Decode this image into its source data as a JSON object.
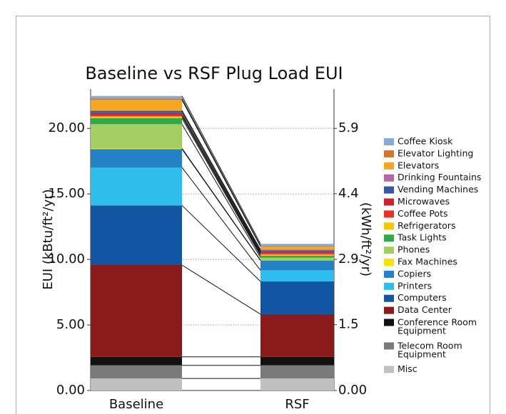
{
  "chart_data": {
    "type": "stacked_bar",
    "title": "Baseline vs RSF Plug Load EUI",
    "ylabel": "EUI (kBtu/ft²/yr)",
    "y2label": "(kWh/ft²/yr)",
    "categories": [
      "Baseline",
      "RSF"
    ],
    "ylim": [
      0,
      23
    ],
    "yticks": [
      {
        "value": 0,
        "label": "0.00"
      },
      {
        "value": 5,
        "label": "5.00"
      },
      {
        "value": 10,
        "label": "10.00"
      },
      {
        "value": 15,
        "label": "15.00"
      },
      {
        "value": 20,
        "label": "20.00"
      }
    ],
    "y2lim": [
      0,
      6.74
    ],
    "y2ticks": [
      {
        "value": 0,
        "label": "0.00"
      },
      {
        "value": 1.47,
        "label": "1.5"
      },
      {
        "value": 2.93,
        "label": "2.9"
      },
      4.4,
      {
        "value": 5.86,
        "label": "5.9"
      }
    ],
    "grid": true,
    "legend": "right",
    "series": [
      {
        "name": "Misc",
        "color": "#c0c0c0",
        "values": [
          0.92,
          0.92
        ]
      },
      {
        "name": "Telecom Room Equipment",
        "color": "#7a7a7a",
        "values": [
          1.0,
          1.0
        ]
      },
      {
        "name": "Conference Room Equipment",
        "color": "#111111",
        "values": [
          0.65,
          0.65
        ]
      },
      {
        "name": "Data Center",
        "color": "#8b1a1a",
        "values": [
          7.0,
          3.25
        ]
      },
      {
        "name": "Computers",
        "color": "#1155a3",
        "values": [
          4.55,
          2.5
        ]
      },
      {
        "name": "Printers",
        "color": "#2fbdee",
        "values": [
          2.9,
          0.85
        ]
      },
      {
        "name": "Copiers",
        "color": "#2381c6",
        "values": [
          1.4,
          0.75
        ]
      },
      {
        "name": "Fax Machines",
        "color": "#f4e400",
        "values": [
          0.05,
          0.02
        ]
      },
      {
        "name": "Phones",
        "color": "#a3cf62",
        "values": [
          1.85,
          0.2
        ]
      },
      {
        "name": "Task Lights",
        "color": "#2eaa4a",
        "values": [
          0.45,
          0.15
        ]
      },
      {
        "name": "Refrigerators",
        "color": "#f6c700",
        "values": [
          0.15,
          0.1
        ]
      },
      {
        "name": "Coffee Pots",
        "color": "#e8302a",
        "values": [
          0.1,
          0.1
        ]
      },
      {
        "name": "Microwaves",
        "color": "#cf2128",
        "values": [
          0.15,
          0.1
        ]
      },
      {
        "name": "Vending Machines",
        "color": "#3a56a5",
        "values": [
          0.15,
          0.1
        ]
      },
      {
        "name": "Drinking Fountains",
        "color": "#b864a8",
        "values": [
          0.05,
          0.05
        ]
      },
      {
        "name": "Elevators",
        "color": "#f5a623",
        "values": [
          0.8,
          0.25
        ]
      },
      {
        "name": "Elevator Lighting",
        "color": "#d2772c",
        "values": [
          0.1,
          0.05
        ]
      },
      {
        "name": "Coffee Kiosk",
        "color": "#8aa9d8",
        "values": [
          0.2,
          0.15
        ]
      }
    ]
  }
}
